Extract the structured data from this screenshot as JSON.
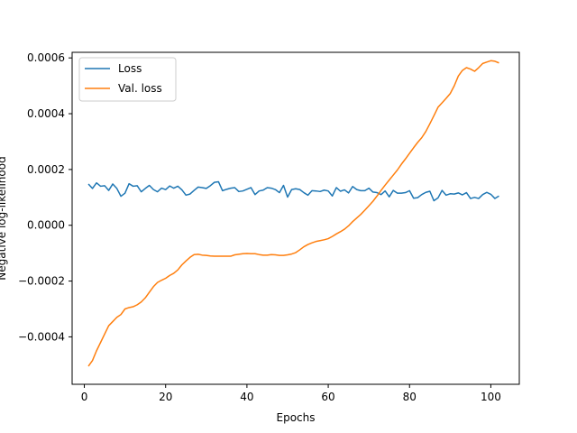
{
  "chart_data": {
    "type": "line",
    "xlabel": "Epochs",
    "ylabel": "Negative log-likelihood",
    "xlim": [
      -3,
      107
    ],
    "ylim": [
      -0.00057,
      0.00062
    ],
    "xticks": [
      0,
      20,
      40,
      60,
      80,
      100
    ],
    "yticks": [
      -0.0004,
      -0.0002,
      0.0,
      0.0002,
      0.0004,
      0.0006
    ],
    "ytick_labels": [
      "−0.0004",
      "−0.0002",
      "0.0000",
      "0.0002",
      "0.0004",
      "0.0006"
    ],
    "xtick_labels": [
      "0",
      "20",
      "40",
      "60",
      "80",
      "100"
    ],
    "legend_placement": "upper-left",
    "grid": false,
    "x": [
      1,
      2,
      3,
      4,
      5,
      6,
      7,
      8,
      9,
      10,
      11,
      12,
      13,
      14,
      15,
      16,
      17,
      18,
      19,
      20,
      21,
      22,
      23,
      24,
      25,
      26,
      27,
      28,
      29,
      30,
      31,
      32,
      33,
      34,
      35,
      36,
      37,
      38,
      39,
      40,
      41,
      42,
      43,
      44,
      45,
      46,
      47,
      48,
      49,
      50,
      51,
      52,
      53,
      54,
      55,
      56,
      57,
      58,
      59,
      60,
      61,
      62,
      63,
      64,
      65,
      66,
      67,
      68,
      69,
      70,
      71,
      72,
      73,
      74,
      75,
      76,
      77,
      78,
      79,
      80,
      81,
      82,
      83,
      84,
      85,
      86,
      87,
      88,
      89,
      90,
      91,
      92,
      93,
      94,
      95,
      96,
      97,
      98,
      99,
      100,
      101,
      102
    ],
    "series": [
      {
        "name": "Loss",
        "color": "#1f77b4",
        "values": [
          0.000148,
          0.000132,
          0.000152,
          0.00014,
          0.000142,
          0.000125,
          0.000148,
          0.000132,
          0.000104,
          0.000115,
          0.000149,
          0.00014,
          0.000142,
          0.00012,
          0.000132,
          0.000143,
          0.000128,
          0.00012,
          0.000133,
          0.000128,
          0.000141,
          0.000133,
          0.00014,
          0.000127,
          0.000108,
          0.000112,
          0.000125,
          0.000137,
          0.000135,
          0.000132,
          0.000142,
          0.000154,
          0.000156,
          0.000124,
          0.000129,
          0.000133,
          0.000135,
          0.000121,
          0.000123,
          0.000129,
          0.000135,
          0.00011,
          0.000123,
          0.000126,
          0.000135,
          0.000133,
          0.000128,
          0.000117,
          0.000143,
          0.000101,
          0.000128,
          0.000131,
          0.000128,
          0.000117,
          0.000108,
          0.000124,
          0.000123,
          0.000121,
          0.000126,
          0.000123,
          0.000105,
          0.000135,
          0.000122,
          0.000127,
          0.000116,
          0.000139,
          0.000128,
          0.000124,
          0.000124,
          0.000133,
          0.000119,
          0.000117,
          0.00011,
          0.000123,
          0.000102,
          0.000125,
          0.000115,
          0.000115,
          0.000117,
          0.000124,
          9.7e-05,
          9.9e-05,
          0.00011,
          0.000118,
          0.000122,
          8.8e-05,
          9.8e-05,
          0.000125,
          0.000108,
          0.000113,
          0.000112,
          0.000116,
          0.000109,
          0.000117,
          9.6e-05,
          0.0001,
          9.6e-05,
          0.00011,
          0.000118,
          0.000111,
          9.6e-05,
          0.000105
        ]
      },
      {
        "name": "Val. loss",
        "color": "#ff7f0e",
        "values": [
          -0.000505,
          -0.000485,
          -0.00045,
          -0.00042,
          -0.00039,
          -0.00036,
          -0.000345,
          -0.00033,
          -0.00032,
          -0.0003,
          -0.000295,
          -0.000292,
          -0.000285,
          -0.000275,
          -0.00026,
          -0.00024,
          -0.00022,
          -0.000205,
          -0.000197,
          -0.00019,
          -0.00018,
          -0.000172,
          -0.00016,
          -0.000142,
          -0.000128,
          -0.000115,
          -0.000105,
          -0.000104,
          -0.000107,
          -0.000108,
          -0.00011,
          -0.000111,
          -0.000111,
          -0.000111,
          -0.000111,
          -0.000111,
          -0.000106,
          -0.000104,
          -0.000102,
          -0.000101,
          -0.000102,
          -0.000102,
          -0.000105,
          -0.000107,
          -0.000107,
          -0.000105,
          -0.000106,
          -0.000108,
          -0.000108,
          -0.000106,
          -0.000103,
          -9.8e-05,
          -8.8e-05,
          -7.7e-05,
          -6.9e-05,
          -6.3e-05,
          -5.8e-05,
          -5.5e-05,
          -5.2e-05,
          -4.8e-05,
          -4e-05,
          -3.1e-05,
          -2.3e-05,
          -1.4e-05,
          -2e-06,
          1.3e-05,
          2.6e-05,
          3.9e-05,
          5.4e-05,
          7e-05,
          8.6e-05,
          0.000105,
          0.000125,
          0.000144,
          0.000162,
          0.00018,
          0.000198,
          0.000219,
          0.000238,
          0.000258,
          0.000278,
          0.000297,
          0.000314,
          0.000336,
          0.000364,
          0.000393,
          0.000423,
          0.000439,
          0.000455,
          0.000472,
          0.0005,
          0.000535,
          0.000555,
          0.000565,
          0.00056,
          0.000552,
          0.000565,
          0.00058,
          0.000585,
          0.00059,
          0.000588,
          0.000582
        ]
      }
    ]
  }
}
